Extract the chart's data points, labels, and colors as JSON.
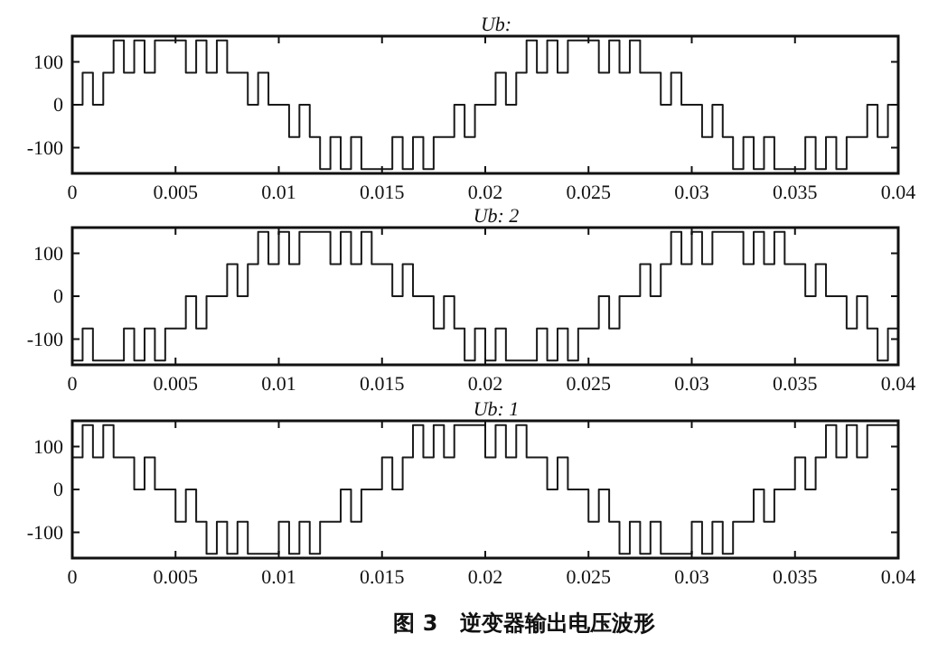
{
  "chart_data": [
    {
      "type": "step",
      "title": "Ub:",
      "x": [
        0,
        0.0005,
        0.001,
        0.0015,
        0.002,
        0.0025,
        0.003,
        0.0035,
        0.004,
        0.0045,
        0.005,
        0.0055,
        0.006,
        0.0065,
        0.007,
        0.0075,
        0.008,
        0.0085,
        0.009,
        0.0095,
        0.01,
        0.0105,
        0.011,
        0.0115,
        0.012,
        0.0125,
        0.013,
        0.0135,
        0.014,
        0.0145,
        0.015,
        0.0155,
        0.016,
        0.0165,
        0.017,
        0.0175,
        0.018,
        0.0185,
        0.019,
        0.0195,
        0.02,
        0.0205,
        0.021,
        0.0215,
        0.022,
        0.0225,
        0.023,
        0.0235,
        0.024,
        0.0245,
        0.025,
        0.0255,
        0.026,
        0.0265,
        0.027,
        0.0275,
        0.028,
        0.0285,
        0.029,
        0.0295,
        0.03,
        0.0305,
        0.031,
        0.0315,
        0.032,
        0.0325,
        0.033,
        0.0335,
        0.034,
        0.0345,
        0.035,
        0.0355,
        0.036,
        0.0365,
        0.037,
        0.0375,
        0.038,
        0.0385,
        0.039,
        0.0395,
        0.04
      ],
      "series": [
        {
          "color": "#1a1a1a",
          "values": [
            0,
            75,
            0,
            75,
            150,
            75,
            150,
            75,
            150,
            150,
            150,
            75,
            150,
            75,
            150,
            75,
            75,
            0,
            75,
            0,
            0,
            -75,
            0,
            -75,
            -150,
            -75,
            -150,
            -75,
            -150,
            -150,
            -150,
            -75,
            -150,
            -75,
            -150,
            -75,
            -75,
            0,
            -75,
            0,
            0,
            75,
            0,
            75,
            150,
            75,
            150,
            75,
            150,
            150,
            150,
            75,
            150,
            75,
            150,
            75,
            75,
            0,
            75,
            0,
            0,
            -75,
            0,
            -75,
            -150,
            -75,
            -150,
            -75,
            -150,
            -150,
            -150,
            -75,
            -150,
            -75,
            -150,
            -75,
            -75,
            0,
            -75,
            0,
            0
          ]
        }
      ],
      "xlim": [
        0,
        0.04
      ],
      "ylim": [
        -160,
        160
      ],
      "xticks": [
        0,
        0.005,
        0.01,
        0.015,
        0.02,
        0.025,
        0.03,
        0.035,
        0.04
      ],
      "yticks": [
        -100,
        0,
        100
      ],
      "grid": false
    },
    {
      "type": "step",
      "title": "Ub: 2",
      "x": [
        0,
        0.0005,
        0.001,
        0.0015,
        0.002,
        0.0025,
        0.003,
        0.0035,
        0.004,
        0.0045,
        0.005,
        0.0055,
        0.006,
        0.0065,
        0.007,
        0.0075,
        0.008,
        0.0085,
        0.009,
        0.0095,
        0.01,
        0.0105,
        0.011,
        0.0115,
        0.012,
        0.0125,
        0.013,
        0.0135,
        0.014,
        0.0145,
        0.015,
        0.0155,
        0.016,
        0.0165,
        0.017,
        0.0175,
        0.018,
        0.0185,
        0.019,
        0.0195,
        0.02,
        0.0205,
        0.021,
        0.0215,
        0.022,
        0.0225,
        0.023,
        0.0235,
        0.024,
        0.0245,
        0.025,
        0.0255,
        0.026,
        0.0265,
        0.027,
        0.0275,
        0.028,
        0.0285,
        0.029,
        0.0295,
        0.03,
        0.0305,
        0.031,
        0.0315,
        0.032,
        0.0325,
        0.033,
        0.0335,
        0.034,
        0.0345,
        0.035,
        0.0355,
        0.036,
        0.0365,
        0.037,
        0.0375,
        0.038,
        0.0385,
        0.039,
        0.0395,
        0.04
      ],
      "series": [
        {
          "color": "#1a1a1a",
          "values": [
            -150,
            -75,
            -150,
            -150,
            -150,
            -75,
            -150,
            -75,
            -150,
            -75,
            -75,
            0,
            -75,
            0,
            0,
            75,
            0,
            75,
            150,
            75,
            150,
            75,
            150,
            150,
            150,
            75,
            150,
            75,
            150,
            75,
            75,
            0,
            75,
            0,
            0,
            -75,
            0,
            -75,
            -150,
            -75,
            -150,
            -75,
            -150,
            -150,
            -150,
            -75,
            -150,
            -75,
            -150,
            -75,
            -75,
            0,
            -75,
            0,
            0,
            75,
            0,
            75,
            150,
            75,
            150,
            75,
            150,
            150,
            150,
            75,
            150,
            75,
            150,
            75,
            75,
            0,
            75,
            0,
            0,
            -75,
            0,
            -75,
            -150,
            -75,
            -150
          ]
        }
      ],
      "xlim": [
        0,
        0.04
      ],
      "ylim": [
        -160,
        160
      ],
      "xticks": [
        0,
        0.005,
        0.01,
        0.015,
        0.02,
        0.025,
        0.03,
        0.035,
        0.04
      ],
      "yticks": [
        -100,
        0,
        100
      ],
      "grid": false
    },
    {
      "type": "step",
      "title": "Ub: 1",
      "x": [
        0,
        0.0005,
        0.001,
        0.0015,
        0.002,
        0.0025,
        0.003,
        0.0035,
        0.004,
        0.0045,
        0.005,
        0.0055,
        0.006,
        0.0065,
        0.007,
        0.0075,
        0.008,
        0.0085,
        0.009,
        0.0095,
        0.01,
        0.0105,
        0.011,
        0.0115,
        0.012,
        0.0125,
        0.013,
        0.0135,
        0.014,
        0.0145,
        0.015,
        0.0155,
        0.016,
        0.0165,
        0.017,
        0.0175,
        0.018,
        0.0185,
        0.019,
        0.0195,
        0.02,
        0.0205,
        0.021,
        0.0215,
        0.022,
        0.0225,
        0.023,
        0.0235,
        0.024,
        0.0245,
        0.025,
        0.0255,
        0.026,
        0.0265,
        0.027,
        0.0275,
        0.028,
        0.0285,
        0.029,
        0.0295,
        0.03,
        0.0305,
        0.031,
        0.0315,
        0.032,
        0.0325,
        0.033,
        0.0335,
        0.034,
        0.0345,
        0.035,
        0.0355,
        0.036,
        0.0365,
        0.037,
        0.0375,
        0.038,
        0.0385,
        0.039,
        0.0395,
        0.04
      ],
      "series": [
        {
          "color": "#1a1a1a",
          "values": [
            75,
            150,
            75,
            150,
            75,
            75,
            0,
            75,
            0,
            0,
            -75,
            0,
            -75,
            -150,
            -75,
            -150,
            -75,
            -150,
            -150,
            -150,
            -75,
            -150,
            -75,
            -150,
            -75,
            -75,
            0,
            -75,
            0,
            0,
            75,
            0,
            75,
            150,
            75,
            150,
            75,
            150,
            150,
            150,
            75,
            150,
            75,
            150,
            75,
            75,
            0,
            75,
            0,
            0,
            -75,
            0,
            -75,
            -150,
            -75,
            -150,
            -75,
            -150,
            -150,
            -150,
            -75,
            -150,
            -75,
            -150,
            -75,
            -75,
            0,
            -75,
            0,
            0,
            75,
            0,
            75,
            150,
            75,
            150,
            75,
            150,
            150,
            150,
            75
          ]
        }
      ],
      "xlim": [
        0,
        0.04
      ],
      "ylim": [
        -160,
        160
      ],
      "xticks": [
        0,
        0.005,
        0.01,
        0.015,
        0.02,
        0.025,
        0.03,
        0.035,
        0.04
      ],
      "yticks": [
        -100,
        0,
        100
      ],
      "grid": false,
      "annotations": [
        "图 3　逆变器输出电压波形"
      ]
    }
  ]
}
